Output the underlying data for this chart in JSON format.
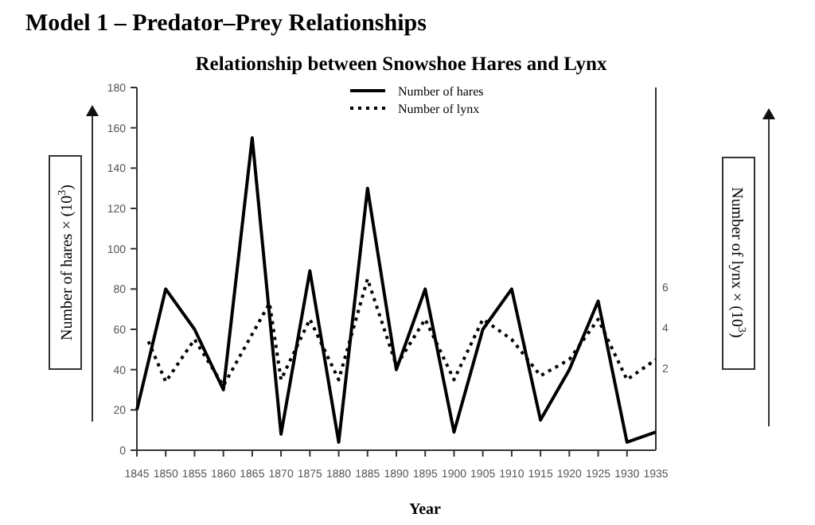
{
  "chart_data": {
    "type": "line",
    "title": "Model 1 – Predator–Prey Relationships",
    "subtitle": "Relationship between Snowshoe Hares and Lynx",
    "xlabel": "Year",
    "ylabel": "Number of hares × (10$^{3}$)",
    "y2label": "Number of lynx × (10$^{3}$)",
    "xlim": [
      1845,
      1935
    ],
    "xticks": [
      1845,
      1850,
      1855,
      1860,
      1865,
      1870,
      1875,
      1880,
      1885,
      1890,
      1895,
      1900,
      1905,
      1910,
      1915,
      1920,
      1925,
      1930,
      1935
    ],
    "ylim": [
      0,
      180
    ],
    "yticks": [
      0,
      20,
      40,
      60,
      80,
      100,
      120,
      140,
      160,
      180
    ],
    "y2lim": [
      -2,
      16
    ],
    "y2ticks": [
      2,
      4,
      6
    ],
    "legend": "top",
    "grid": false,
    "series": [
      {
        "name": "Number of hares",
        "color": "#000000",
        "line_style": "solid",
        "x": [
          1845,
          1850,
          1855,
          1860,
          1865,
          1870,
          1875,
          1880,
          1885,
          1890,
          1895,
          1900,
          1905,
          1910,
          1915,
          1920,
          1925,
          1930,
          1935
        ],
        "values": [
          20,
          80,
          60,
          30,
          155,
          8,
          89,
          4,
          130,
          40,
          80,
          9,
          60,
          80,
          15,
          40,
          74,
          4,
          9
        ]
      },
      {
        "name": "Number of lynx",
        "color": "#000000",
        "line_style": "dotted",
        "axis": "y2",
        "x": [
          1847,
          1850,
          1855,
          1860,
          1868,
          1870,
          1875,
          1880,
          1885,
          1890,
          1895,
          1900,
          1905,
          1910,
          1915,
          1920,
          1925,
          1930,
          1935
        ],
        "values": [
          3.4,
          1.4,
          3.5,
          1.2,
          5.3,
          1.5,
          4.5,
          1.5,
          6.5,
          2.2,
          4.5,
          1.5,
          4.5,
          3.5,
          1.7,
          2.5,
          4.5,
          1.5,
          2.5
        ]
      }
    ]
  }
}
